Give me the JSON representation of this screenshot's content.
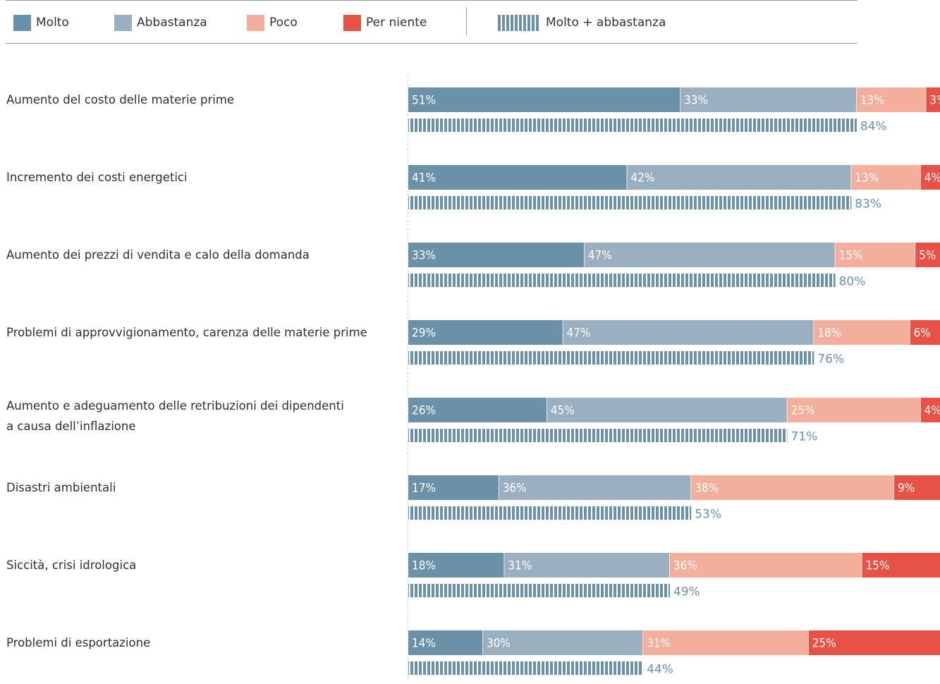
{
  "legend": {
    "items": [
      {
        "label": "Molto",
        "color": "#6a91a8"
      },
      {
        "label": "Abbastanza",
        "color": "#9ab0c0"
      },
      {
        "label": "Poco",
        "color": "#f4ae9c"
      },
      {
        "label": "Per niente",
        "color": "#e85246"
      }
    ],
    "combined": {
      "label": "Molto + abbastanza",
      "color": "#6a91a8"
    }
  },
  "chart_data": {
    "type": "bar",
    "orientation": "horizontal",
    "stacked": true,
    "categories": [
      [
        "Aumento del costo delle materie prime"
      ],
      [
        "Incremento dei costi energetici"
      ],
      [
        "Aumento dei prezzi di vendita e calo della domanda"
      ],
      [
        "Problemi di approvvigionamento, carenza delle materie prime"
      ],
      [
        "Aumento e adeguamento delle retribuzioni dei dipendenti",
        "a causa dell’inflazione"
      ],
      [
        "Disastri ambientali"
      ],
      [
        "Siccità, crisi idrologica"
      ],
      [
        "Problemi di esportazione"
      ]
    ],
    "series": [
      {
        "name": "Molto",
        "color": "#6a91a8",
        "values": [
          51,
          41,
          33,
          29,
          26,
          17,
          18,
          14
        ]
      },
      {
        "name": "Abbastanza",
        "color": "#9ab0c0",
        "values": [
          33,
          42,
          47,
          47,
          45,
          36,
          31,
          30
        ]
      },
      {
        "name": "Poco",
        "color": "#f4ae9c",
        "values": [
          13,
          13,
          15,
          18,
          25,
          38,
          36,
          31
        ]
      },
      {
        "name": "Per niente",
        "color": "#e85246",
        "values": [
          3,
          4,
          5,
          6,
          4,
          9,
          15,
          25
        ]
      }
    ],
    "combined": {
      "name": "Molto + abbastanza",
      "color": "#6a91a8",
      "values": [
        84,
        83,
        80,
        76,
        71,
        53,
        49,
        44
      ]
    },
    "value_suffix": "%",
    "xlim": [
      0,
      100
    ]
  }
}
